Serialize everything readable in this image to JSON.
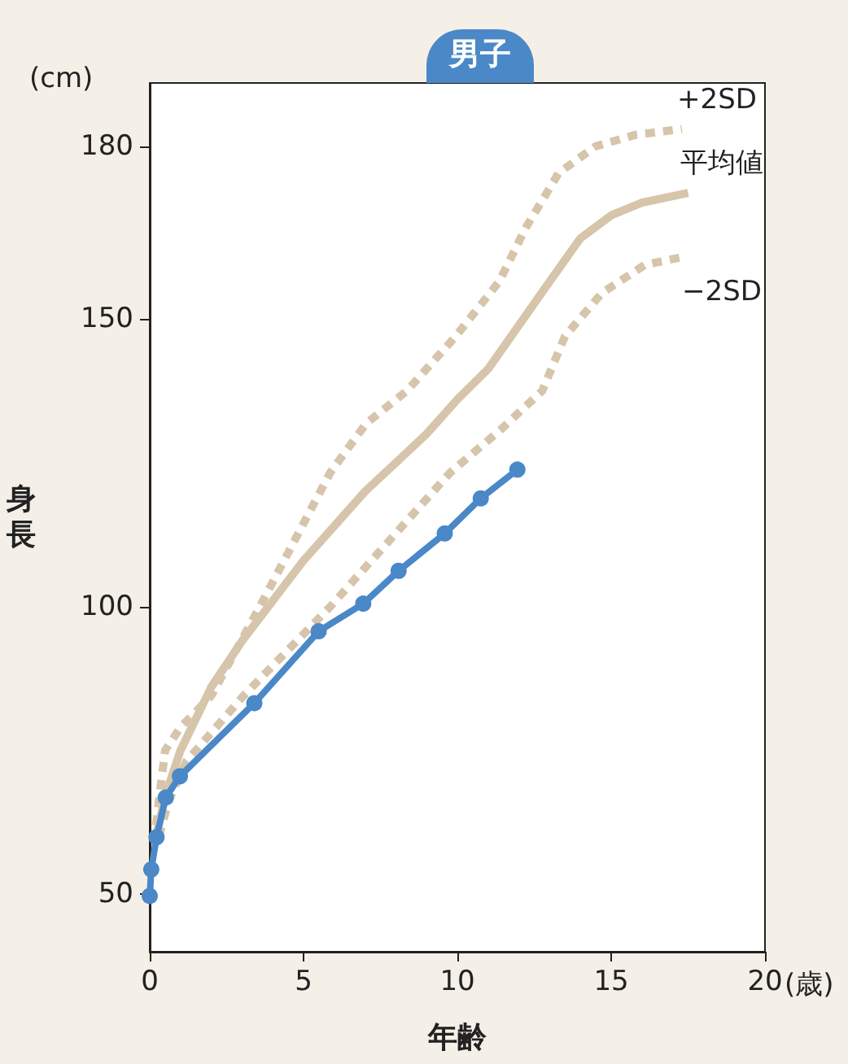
{
  "chart_data": {
    "type": "line",
    "title": "男子",
    "xlabel": "年齢",
    "ylabel": "身長",
    "annotations": [
      "(cm)",
      "(歳)"
    ],
    "xlim": [
      0,
      20
    ],
    "xticks": [
      0,
      5,
      10,
      15,
      20
    ],
    "ylim": [
      40,
      191
    ],
    "yticks": [
      50,
      100,
      150,
      180
    ],
    "grid": false,
    "legend": false,
    "series": [
      {
        "name": "+2SD",
        "color": "#d6c5aa",
        "line_style": "dashed",
        "marker": "none",
        "x": [
          0.2,
          0.5,
          1,
          2,
          3.58,
          5.87,
          7.03,
          8.36,
          9.95,
          11.36,
          12.23,
          13.3,
          14.5,
          15.8,
          17.3
        ],
        "values": [
          62,
          75,
          79,
          84.5,
          100,
          123.3,
          131.8,
          137.5,
          147,
          156.5,
          165.9,
          175.4,
          180,
          182,
          183
        ]
      },
      {
        "name": "平均値",
        "color": "#d6c5aa",
        "line_style": "solid",
        "marker": "none",
        "x": [
          0.2,
          0.5,
          1,
          2,
          3,
          4,
          5,
          6,
          7,
          8,
          9,
          10,
          11,
          12,
          13,
          14,
          15,
          16,
          17.5
        ],
        "values": [
          60,
          67,
          75,
          86,
          94,
          101,
          108,
          114,
          120,
          125,
          130,
          136,
          141.3,
          148.9,
          156.5,
          164,
          168,
          170.2,
          171.9
        ]
      },
      {
        "name": "−2SD",
        "color": "#d6c5aa",
        "line_style": "dashed",
        "marker": "none",
        "x": [
          0.3,
          0.6,
          1.19,
          3.05,
          5.87,
          9.77,
          11.4,
          12.76,
          13.5,
          14.7,
          16.1,
          17.46
        ],
        "values": [
          60,
          66,
          73.1,
          84.5,
          100,
          123.3,
          130.7,
          137.5,
          147,
          154.5,
          159.4,
          160.9
        ]
      },
      {
        "color": "#4a88c8",
        "line_style": "solid",
        "marker": "circle",
        "x": [
          0,
          0.05,
          0.22,
          0.52,
          0.98,
          3.4,
          5.49,
          6.94,
          8.09,
          9.59,
          10.76,
          11.95
        ],
        "values": [
          49.7,
          54.3,
          59.9,
          66.8,
          70.5,
          83.2,
          95.7,
          100.5,
          106.2,
          112.7,
          118.8,
          123.8
        ]
      }
    ]
  }
}
